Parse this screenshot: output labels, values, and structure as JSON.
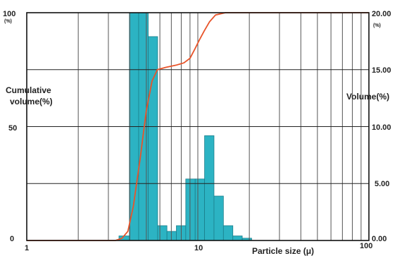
{
  "chart_data": {
    "type": "bar",
    "xlabel": "Particle size (μ)",
    "x_scale": "log",
    "xlim": [
      1,
      100
    ],
    "x_ticks": [
      "1",
      "10",
      "100"
    ],
    "y_left": {
      "label": "Cumulative volume(%)",
      "ylim": [
        0,
        100
      ],
      "ticks": [
        "0",
        "50",
        "100"
      ],
      "unit": "(%)"
    },
    "y_right": {
      "label": "Volume(%)",
      "ylim": [
        0,
        20
      ],
      "ticks": [
        "0.00",
        "5.00",
        "10.00",
        "15.00",
        "20.00"
      ],
      "unit": "(%)"
    },
    "grid": true,
    "colors": {
      "bars": "#2cb3c3",
      "bar_edge": "#1b7f8c",
      "cumulative": "#e8542a",
      "volume_label": "#2f5aa8"
    },
    "series": [
      {
        "name": "Volume(%)",
        "type": "bar",
        "axis": "right",
        "bins": [
          [
            3.46,
            3.98,
            0.4
          ],
          [
            3.98,
            4.51,
            20.0
          ],
          [
            4.51,
            5.13,
            20.0
          ],
          [
            5.13,
            5.82,
            17.9
          ],
          [
            5.82,
            6.6,
            1.3
          ],
          [
            6.6,
            7.49,
            0.8
          ],
          [
            7.49,
            8.5,
            1.3
          ],
          [
            8.5,
            9.65,
            5.4
          ],
          [
            9.65,
            10.95,
            5.4
          ],
          [
            10.95,
            12.43,
            9.2
          ],
          [
            12.43,
            14.11,
            3.9
          ],
          [
            14.11,
            16.02,
            1.3
          ],
          [
            16.02,
            18.18,
            0.4
          ],
          [
            18.18,
            20.63,
            0.2
          ]
        ]
      },
      {
        "name": "Cumulative volume(%)",
        "type": "line",
        "axis": "left",
        "points": [
          [
            1,
            0
          ],
          [
            3.3,
            0
          ],
          [
            3.6,
            1
          ],
          [
            3.9,
            4
          ],
          [
            4.2,
            15
          ],
          [
            4.6,
            36
          ],
          [
            5.0,
            57
          ],
          [
            5.4,
            70
          ],
          [
            5.8,
            75
          ],
          [
            6.5,
            76
          ],
          [
            7.5,
            77
          ],
          [
            8.3,
            78
          ],
          [
            9.0,
            80
          ],
          [
            9.6,
            84
          ],
          [
            10.2,
            88
          ],
          [
            10.9,
            92
          ],
          [
            11.7,
            96
          ],
          [
            12.7,
            99
          ],
          [
            14.5,
            100
          ],
          [
            100,
            100
          ]
        ]
      }
    ]
  }
}
